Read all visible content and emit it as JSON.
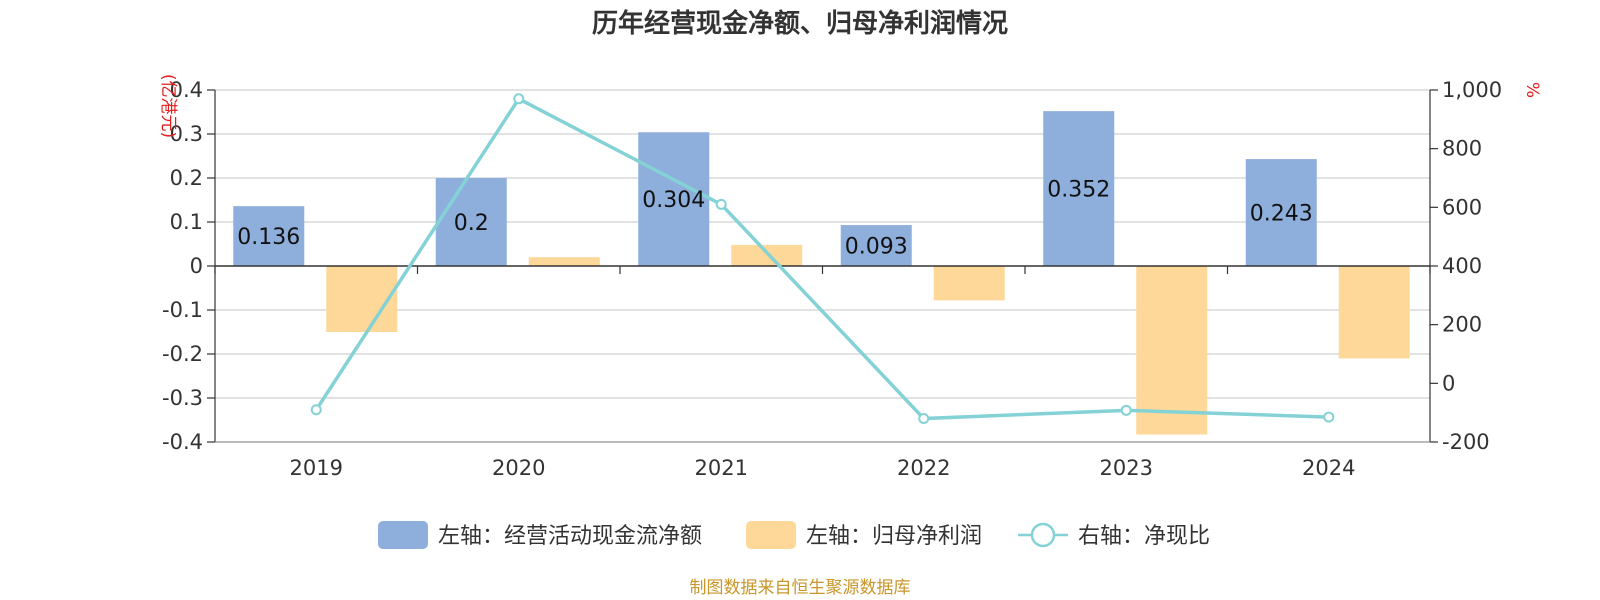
{
  "chart_data": {
    "type": "bar",
    "title": "历年经营现金净额、归母净利润情况",
    "categories": [
      "2019",
      "2020",
      "2021",
      "2022",
      "2023",
      "2024"
    ],
    "left_axis": {
      "unit": "(亿港元)",
      "ylim": [
        -0.4,
        0.4
      ],
      "ticks": [
        0.4,
        0.3,
        0.2,
        0.1,
        0,
        -0.1,
        -0.2,
        -0.3,
        -0.4
      ],
      "tick_labels": [
        "0.4",
        "0.3",
        "0.2",
        "0.1",
        "0",
        "-0.1",
        "-0.2",
        "-0.3",
        "-0.4"
      ]
    },
    "right_axis": {
      "unit": "%",
      "ylim": [
        -200,
        1000
      ],
      "ticks": [
        1000,
        800,
        600,
        400,
        200,
        0,
        -200
      ],
      "tick_labels": [
        "1,000",
        "800",
        "600",
        "400",
        "200",
        "0",
        "-200"
      ]
    },
    "series": [
      {
        "name": "左轴：经营活动现金流净额",
        "type": "bar",
        "axis": "left",
        "color": "#8eaedc",
        "values": [
          0.136,
          0.2,
          0.304,
          0.093,
          0.352,
          0.243
        ],
        "labels": [
          "0.136",
          "0.2",
          "0.304",
          "0.093",
          "0.352",
          "0.243"
        ]
      },
      {
        "name": "左轴：归母净利润",
        "type": "bar",
        "axis": "left",
        "color": "#fdd898",
        "values": [
          -0.15,
          0.02,
          0.048,
          -0.078,
          -0.383,
          -0.21
        ]
      },
      {
        "name": "右轴：净现比",
        "type": "line",
        "axis": "right",
        "color": "#84d2d6",
        "values": [
          -90,
          970,
          610,
          -120,
          -92,
          -115
        ]
      }
    ],
    "grid": true,
    "legend": "bottom-center"
  },
  "source": "制图数据来自恒生聚源数据库"
}
